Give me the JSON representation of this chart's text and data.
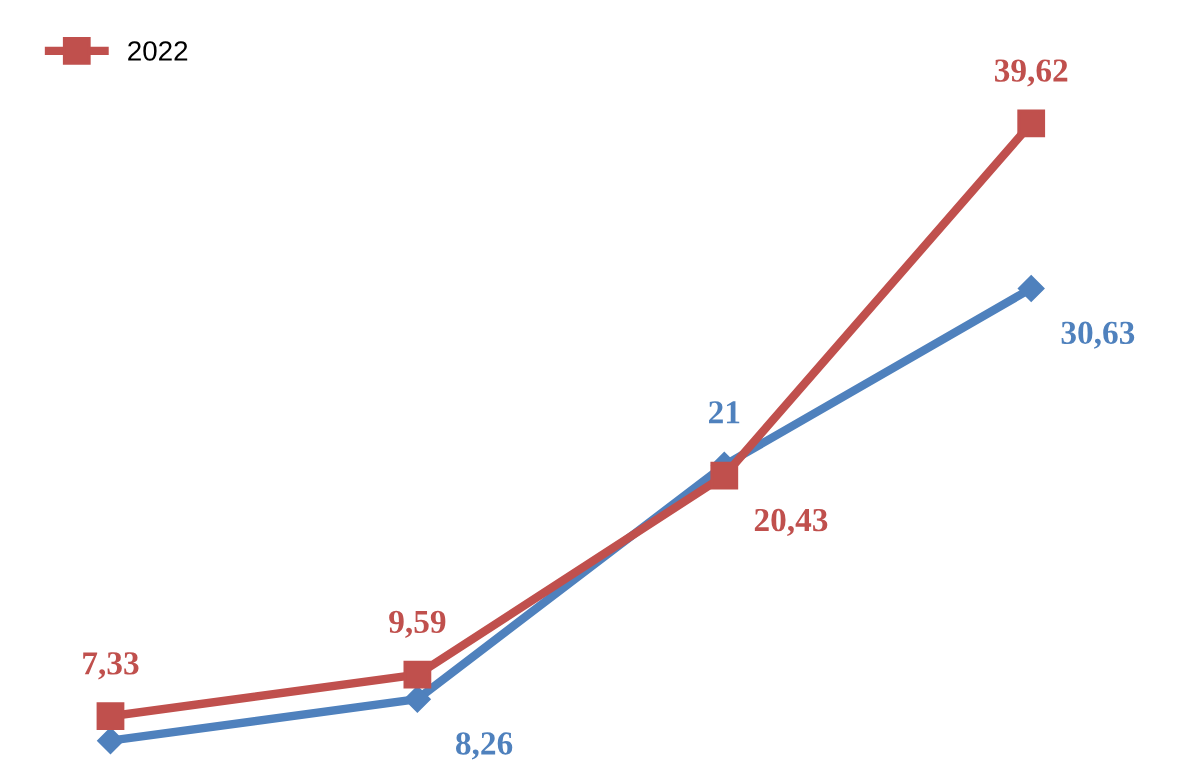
{
  "chart_data": {
    "type": "line",
    "categories": [
      null,
      null,
      null,
      null
    ],
    "series": [
      {
        "color": "#4f81bd",
        "marker": "diamond",
        "values": [
          6.0,
          8.26,
          21,
          30.63
        ],
        "value_labels": [
          null,
          "8,26",
          "21",
          "30,63"
        ]
      },
      {
        "name": "2022",
        "color": "#c0504d",
        "marker": "square",
        "values": [
          7.33,
          9.59,
          20.43,
          39.62
        ],
        "value_labels": [
          "7,33",
          "9,59",
          "20,43",
          "39,62"
        ]
      }
    ],
    "legend": "top left"
  }
}
